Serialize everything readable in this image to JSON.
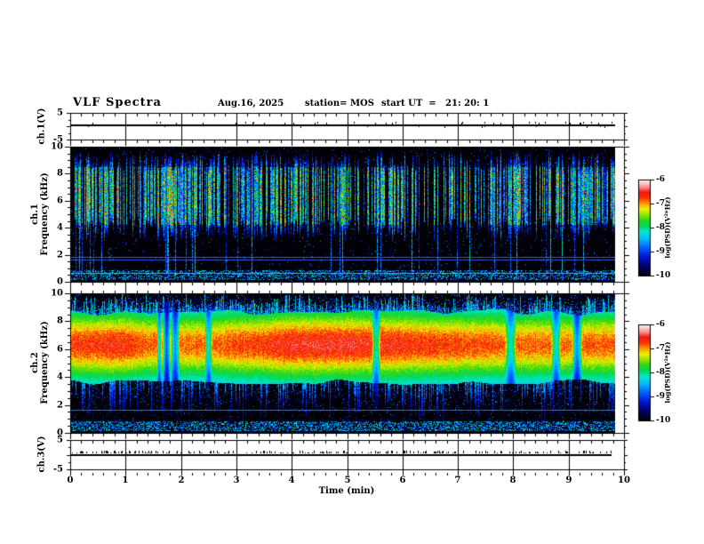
{
  "figure": {
    "background": "#ffffff",
    "axis_color": "#000000"
  },
  "header": {
    "title": "VLF Spectra",
    "date": "Aug.16, 2025",
    "station": "station= MOS",
    "start_ut": "start UT  =   21: 20: 1"
  },
  "xaxis": {
    "label": "Time (min)",
    "range": [
      0,
      10
    ],
    "ticks": [
      0,
      1,
      2,
      3,
      4,
      5,
      6,
      7,
      8,
      9,
      10
    ],
    "minor_tick_step": 0.2,
    "data_end_min": 9.84
  },
  "colorbar": {
    "label": "log(PSD)(V²*Hz)",
    "ticks": [
      -6,
      -7,
      -8,
      -9,
      -10
    ],
    "range": [
      -10,
      -6
    ],
    "gradient_stops": [
      [
        0,
        "#000006"
      ],
      [
        0.1,
        "#000070"
      ],
      [
        0.2,
        "#0018d8"
      ],
      [
        0.3,
        "#0068ff"
      ],
      [
        0.38,
        "#00b8ff"
      ],
      [
        0.46,
        "#00e8d0"
      ],
      [
        0.52,
        "#00d860"
      ],
      [
        0.58,
        "#28d818"
      ],
      [
        0.64,
        "#90e400"
      ],
      [
        0.7,
        "#f0f000"
      ],
      [
        0.76,
        "#ff9800"
      ],
      [
        0.82,
        "#ff3000"
      ],
      [
        0.88,
        "#f01810"
      ],
      [
        0.93,
        "#ff8888"
      ],
      [
        1,
        "#ffecec"
      ]
    ]
  },
  "chart_data": [
    {
      "id": "ch1-voltage",
      "type": "line",
      "ylabel": "ch.1(V)",
      "ylim": [
        -5,
        5
      ],
      "yticks": [
        5,
        -5
      ],
      "xlim": [
        0,
        10
      ],
      "description": "flat voltage trace at ≈0 V with tiny impulsive spikes; record ends at ≈9.84 min"
    },
    {
      "id": "ch1-spectrogram",
      "type": "heatmap",
      "ylabel_lines": [
        "ch.1",
        "Frequency (kHz)"
      ],
      "ylim": [
        0,
        10
      ],
      "yticks": [
        10,
        8,
        6,
        4,
        2,
        0
      ],
      "minor_tick_khz": 0.5,
      "xlim": [
        0,
        10
      ],
      "zlabel": "log(PSD)(V²*Hz)",
      "zlim": [
        -10,
        -6
      ],
      "description": "black background with dense impulsive vertical sferic streaks mostly 3.5–9 kHz (log PSD ≈ −9 to −8, blue/cyan/green), occasional tall streaks reaching 0 kHz and rare red dots",
      "interference_lines_khz": [
        1.78,
        1.6,
        0.62
      ],
      "bottom_speckle_band_khz": [
        0.1,
        0.8
      ]
    },
    {
      "id": "ch2-spectrogram",
      "type": "heatmap",
      "ylabel_lines": [
        "ch.2",
        "Frequency (kHz)"
      ],
      "ylim": [
        0,
        10
      ],
      "yticks": [
        10,
        8,
        6,
        4,
        2,
        0
      ],
      "minor_tick_khz": 0.5,
      "xlim": [
        0,
        10
      ],
      "zlabel": "log(PSD)(V²*Hz)",
      "zlim": [
        -10,
        -6
      ],
      "description": "continuous strong emission band ≈3.5–8.7 kHz with red/orange core (log PSD ≈ −7) near 5.5–7 kHz, yellow-green edges, blue fringes; black below 3 kHz with blue speckle and narrow dark vertical gaps",
      "interference_lines_khz": [
        1.6
      ],
      "bottom_speckle_band_khz": [
        0.1,
        0.8
      ],
      "band": {
        "f_low_khz": 3.5,
        "f_high_khz": 8.6,
        "peak_khz": 6.35
      }
    },
    {
      "id": "ch3-voltage",
      "type": "line",
      "ylabel": "ch.3(V)",
      "ylim": [
        -5,
        5
      ],
      "yticks": [
        5,
        -5
      ],
      "xlim": [
        0,
        10
      ],
      "description": "flat voltage trace at ≈0 V with small positive spikes; record ends at ≈9.84 min"
    }
  ]
}
